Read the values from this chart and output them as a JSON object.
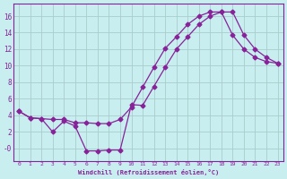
{
  "xlabel": "Windchill (Refroidissement éolien,°C)",
  "bg_color": "#c8eef0",
  "line_color": "#882299",
  "grid_color": "#aacccc",
  "xlim": [
    -0.5,
    23.5
  ],
  "ylim": [
    -1.5,
    17.5
  ],
  "xticks": [
    0,
    1,
    2,
    3,
    4,
    5,
    6,
    7,
    8,
    9,
    10,
    11,
    12,
    13,
    14,
    15,
    16,
    17,
    18,
    19,
    20,
    21,
    22,
    23
  ],
  "yticks": [
    0,
    2,
    4,
    6,
    8,
    10,
    12,
    14,
    16
  ],
  "ytick_labels": [
    "-0",
    "2",
    "4",
    "6",
    "8",
    "10",
    "12",
    "14",
    "16"
  ],
  "line1_x": [
    0,
    1,
    2,
    3,
    4,
    5,
    6,
    7,
    8,
    9,
    10,
    11,
    12,
    13,
    14,
    15,
    16,
    17,
    18,
    19,
    20,
    21,
    22,
    23
  ],
  "line1_y": [
    4.5,
    3.7,
    3.6,
    3.5,
    3.5,
    3.1,
    3.1,
    3.0,
    3.0,
    3.5,
    5.0,
    7.4,
    9.8,
    12.1,
    13.5,
    15.0,
    16.0,
    16.5,
    16.5,
    13.7,
    12.0,
    11.0,
    10.5,
    10.3
  ],
  "line2_x": [
    0,
    1,
    2,
    3,
    4,
    5,
    6,
    7,
    8,
    9,
    10,
    11,
    12,
    13,
    14,
    15,
    16,
    17,
    18,
    19,
    20,
    21,
    22,
    23
  ],
  "line2_y": [
    4.5,
    3.7,
    3.6,
    2.0,
    3.3,
    2.7,
    -0.3,
    -0.3,
    -0.2,
    -0.2,
    5.3,
    5.2,
    7.5,
    9.8,
    12.0,
    13.5,
    15.0,
    16.0,
    16.5,
    16.5,
    13.7,
    12.0,
    11.0,
    10.3
  ]
}
